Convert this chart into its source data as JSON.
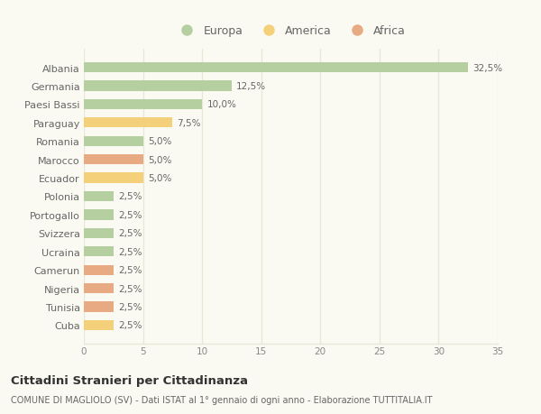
{
  "countries": [
    "Albania",
    "Germania",
    "Paesi Bassi",
    "Paraguay",
    "Romania",
    "Marocco",
    "Ecuador",
    "Polonia",
    "Portogallo",
    "Svizzera",
    "Ucraina",
    "Camerun",
    "Nigeria",
    "Tunisia",
    "Cuba"
  ],
  "values": [
    32.5,
    12.5,
    10.0,
    7.5,
    5.0,
    5.0,
    5.0,
    2.5,
    2.5,
    2.5,
    2.5,
    2.5,
    2.5,
    2.5,
    2.5
  ],
  "continents": [
    "Europa",
    "Europa",
    "Europa",
    "America",
    "Europa",
    "Africa",
    "America",
    "Europa",
    "Europa",
    "Europa",
    "Europa",
    "Africa",
    "Africa",
    "Africa",
    "America"
  ],
  "colors": {
    "Europa": "#b5cfa0",
    "America": "#f5d07a",
    "Africa": "#e8aa82"
  },
  "legend_labels": [
    "Europa",
    "America",
    "Africa"
  ],
  "legend_colors": [
    "#b5cfa0",
    "#f5d07a",
    "#e8aa82"
  ],
  "title": "Cittadini Stranieri per Cittadinanza",
  "subtitle": "COMUNE DI MAGLIOLO (SV) - Dati ISTAT al 1° gennaio di ogni anno - Elaborazione TUTTITALIA.IT",
  "xlim": [
    0,
    35
  ],
  "xticks": [
    0,
    5,
    10,
    15,
    20,
    25,
    30,
    35
  ],
  "background_color": "#fafaf2",
  "bar_height": 0.55,
  "grid_color": "#e8e8d8"
}
